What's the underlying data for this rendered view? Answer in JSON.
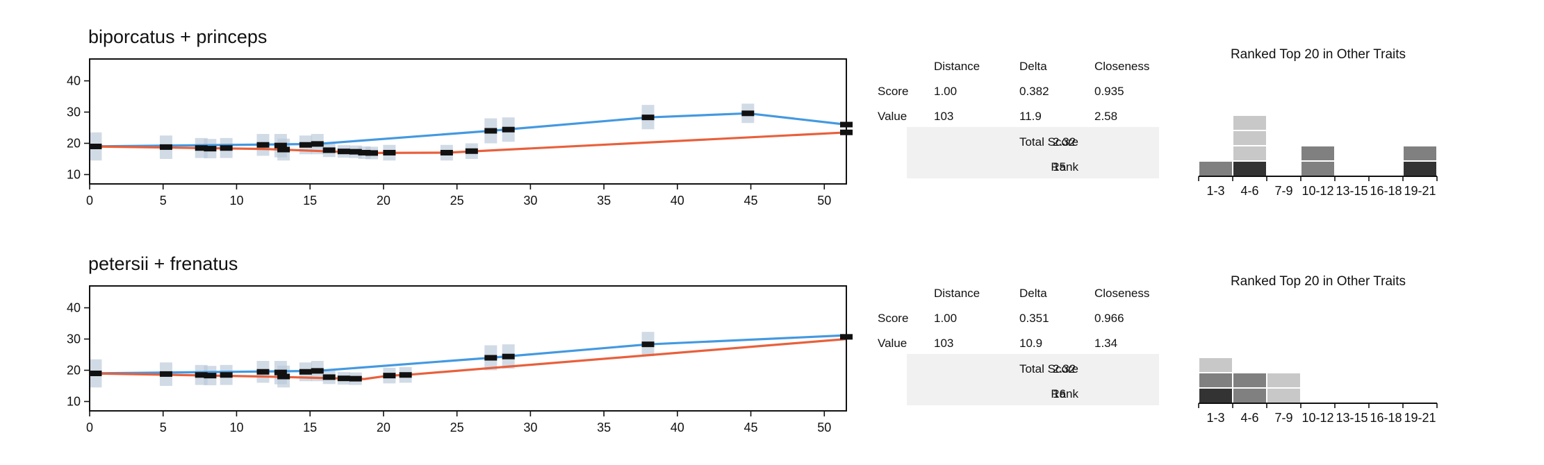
{
  "colors": {
    "line_a": "#4499e0",
    "line_b": "#e8603c",
    "error_band": "#b8c8d8",
    "marker": "#111111",
    "hist_dark": "#333333",
    "hist_mid": "#808080",
    "hist_light": "#c8c8c8",
    "table_bg": "#f1f1f1"
  },
  "panels": [
    {
      "title": "biporcatus + princeps",
      "stats": {
        "headers": [
          "Distance",
          "Delta",
          "Closeness"
        ],
        "rows": [
          {
            "label": "Score",
            "values": [
              "1.00",
              "0.382",
              "0.935"
            ]
          },
          {
            "label": "Value",
            "values": [
              "103",
              "11.9",
              "2.58"
            ]
          }
        ],
        "total_score_label": "Total Score",
        "total_score": "2.32",
        "rank_label": "Rank",
        "rank": "15"
      },
      "chart_data": {
        "type": "line",
        "title": "",
        "xlim": [
          0,
          51.5
        ],
        "ylim": [
          7,
          47
        ],
        "x_ticks": [
          0,
          5,
          10,
          15,
          20,
          25,
          30,
          35,
          40,
          45,
          50
        ],
        "y_ticks": [
          10,
          20,
          30,
          40
        ],
        "series": [
          {
            "color_key": "line_a",
            "points": [
              [
                0,
                19
              ],
              [
                15.5,
                19.8
              ],
              [
                27.3,
                24
              ],
              [
                38,
                28.3
              ],
              [
                44.8,
                29.6
              ],
              [
                51.5,
                26
              ]
            ]
          },
          {
            "color_key": "line_b",
            "points": [
              [
                0,
                19
              ],
              [
                11.8,
                18.2
              ],
              [
                19.2,
                16.9
              ],
              [
                24.3,
                17
              ],
              [
                51.5,
                23.5
              ]
            ]
          }
        ],
        "error_bars": [
          {
            "x": 0.4,
            "y": 19,
            "low": 14.5,
            "high": 23.5
          },
          {
            "x": 5.2,
            "y": 18.8,
            "low": 15,
            "high": 22.5
          },
          {
            "x": 7.6,
            "y": 18.5,
            "low": 15.3,
            "high": 21.7
          },
          {
            "x": 8.2,
            "y": 18.3,
            "low": 15.2,
            "high": 21.4
          },
          {
            "x": 9.3,
            "y": 18.5,
            "low": 15.3,
            "high": 21.7
          },
          {
            "x": 11.8,
            "y": 19.5,
            "low": 16,
            "high": 23
          },
          {
            "x": 13,
            "y": 19.3,
            "low": 15.5,
            "high": 23
          },
          {
            "x": 13.2,
            "y": 18,
            "low": 14.5,
            "high": 21.5
          },
          {
            "x": 14.7,
            "y": 19.5,
            "low": 16.5,
            "high": 22.5
          },
          {
            "x": 15.5,
            "y": 19.8,
            "low": 16.5,
            "high": 23
          },
          {
            "x": 16.3,
            "y": 17.8,
            "low": 15.6,
            "high": 20
          },
          {
            "x": 17.3,
            "y": 17.4,
            "low": 15.4,
            "high": 19.4
          },
          {
            "x": 18.1,
            "y": 17.3,
            "low": 15.3,
            "high": 19.3
          },
          {
            "x": 18.7,
            "y": 17,
            "low": 15,
            "high": 19
          },
          {
            "x": 19.2,
            "y": 16.9,
            "low": 14.9,
            "high": 18.9
          },
          {
            "x": 20.4,
            "y": 17,
            "low": 14.5,
            "high": 19.5
          },
          {
            "x": 24.3,
            "y": 17,
            "low": 14.5,
            "high": 19.5
          },
          {
            "x": 26,
            "y": 17.5,
            "low": 15,
            "high": 20
          },
          {
            "x": 27.3,
            "y": 24,
            "low": 20,
            "high": 28
          },
          {
            "x": 28.5,
            "y": 24.4,
            "low": 20.5,
            "high": 28.3
          },
          {
            "x": 38,
            "y": 28.3,
            "low": 24.5,
            "high": 32.3
          },
          {
            "x": 44.8,
            "y": 29.6,
            "low": 26.5,
            "high": 32.7
          },
          {
            "x": 51.5,
            "y": 26,
            "low": 26,
            "high": 26
          },
          {
            "x": 51.5,
            "y": 23.5,
            "low": 23.5,
            "high": 23.5
          }
        ]
      },
      "histogram": {
        "title": "Ranked Top 20 in Other Traits",
        "categories": [
          "1-3",
          "4-6",
          "7-9",
          "10-12",
          "13-15",
          "16-18",
          "19-21"
        ],
        "stacks": [
          [
            "mid"
          ],
          [
            "dark",
            "light",
            "light",
            "light"
          ],
          [],
          [
            "mid",
            "mid"
          ],
          [],
          [],
          [
            "dark",
            "mid"
          ]
        ]
      }
    },
    {
      "title": "petersii + frenatus",
      "stats": {
        "headers": [
          "Distance",
          "Delta",
          "Closeness"
        ],
        "rows": [
          {
            "label": "Score",
            "values": [
              "1.00",
              "0.351",
              "0.966"
            ]
          },
          {
            "label": "Value",
            "values": [
              "103",
              "10.9",
              "1.34"
            ]
          }
        ],
        "total_score_label": "Total Score",
        "total_score": "2.32",
        "rank_label": "Rank",
        "rank": "16"
      },
      "chart_data": {
        "type": "line",
        "title": "",
        "xlim": [
          0,
          51.5
        ],
        "ylim": [
          7,
          47
        ],
        "x_ticks": [
          0,
          5,
          10,
          15,
          20,
          25,
          30,
          35,
          40,
          45,
          50
        ],
        "y_ticks": [
          10,
          20,
          30,
          40
        ],
        "series": [
          {
            "color_key": "line_a",
            "points": [
              [
                0,
                19
              ],
              [
                15.5,
                19.8
              ],
              [
                27.3,
                24
              ],
              [
                38,
                28.3
              ],
              [
                51.5,
                31.2
              ]
            ]
          },
          {
            "color_key": "line_b",
            "points": [
              [
                0,
                19
              ],
              [
                11.8,
                18
              ],
              [
                18.7,
                17.2
              ],
              [
                20.4,
                18.3
              ],
              [
                21.5,
                18.5
              ],
              [
                51.5,
                30
              ]
            ]
          }
        ],
        "error_bars": [
          {
            "x": 0.4,
            "y": 19,
            "low": 14.5,
            "high": 23.5
          },
          {
            "x": 5.2,
            "y": 18.8,
            "low": 15,
            "high": 22.5
          },
          {
            "x": 7.6,
            "y": 18.5,
            "low": 15.3,
            "high": 21.7
          },
          {
            "x": 8.2,
            "y": 18.3,
            "low": 15.2,
            "high": 21.4
          },
          {
            "x": 9.3,
            "y": 18.5,
            "low": 15.3,
            "high": 21.7
          },
          {
            "x": 11.8,
            "y": 19.5,
            "low": 16,
            "high": 23
          },
          {
            "x": 13,
            "y": 19.3,
            "low": 15.5,
            "high": 23
          },
          {
            "x": 13.2,
            "y": 18,
            "low": 14.5,
            "high": 21.5
          },
          {
            "x": 14.7,
            "y": 19.5,
            "low": 16.5,
            "high": 22.5
          },
          {
            "x": 15.5,
            "y": 19.8,
            "low": 16.5,
            "high": 23
          },
          {
            "x": 16.3,
            "y": 17.8,
            "low": 15.6,
            "high": 20
          },
          {
            "x": 17.3,
            "y": 17.4,
            "low": 15.4,
            "high": 19.4
          },
          {
            "x": 18.1,
            "y": 17.3,
            "low": 15.3,
            "high": 19.3
          },
          {
            "x": 20.4,
            "y": 18.3,
            "low": 15.8,
            "high": 20.8
          },
          {
            "x": 21.5,
            "y": 18.5,
            "low": 16,
            "high": 21
          },
          {
            "x": 27.3,
            "y": 24,
            "low": 20,
            "high": 28
          },
          {
            "x": 28.5,
            "y": 24.4,
            "low": 20.5,
            "high": 28.3
          },
          {
            "x": 38,
            "y": 28.3,
            "low": 24.5,
            "high": 32.3
          },
          {
            "x": 51.5,
            "y": 30.7,
            "low": 30.7,
            "high": 30.7
          }
        ]
      },
      "histogram": {
        "title": "Ranked Top 20 in Other Traits",
        "categories": [
          "1-3",
          "4-6",
          "7-9",
          "10-12",
          "13-15",
          "16-18",
          "19-21"
        ],
        "stacks": [
          [
            "dark",
            "mid",
            "light"
          ],
          [
            "mid",
            "mid"
          ],
          [
            "light",
            "light"
          ],
          [],
          [],
          [],
          []
        ]
      }
    }
  ]
}
